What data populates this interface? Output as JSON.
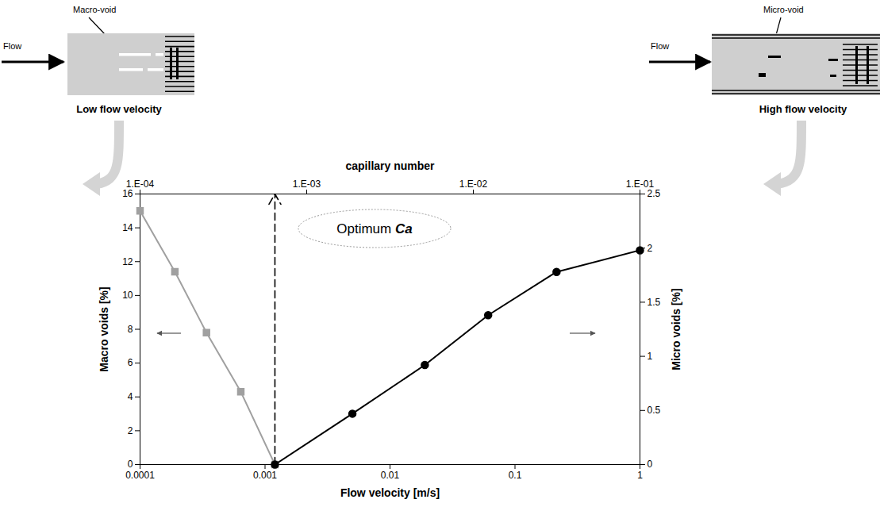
{
  "chart_data": {
    "type": "line",
    "log": "x",
    "grid": false,
    "x_label": "Flow velocity [m/s]",
    "xlim": [
      0.0001,
      1
    ],
    "xticks": [
      0.0001,
      0.001,
      0.01,
      0.1,
      1
    ],
    "x2_label": "capillary number",
    "x2lim": [
      0.0001,
      0.1
    ],
    "x2ticks": [
      {
        "value": 0.0001,
        "label": "1.E-04"
      },
      {
        "value": 0.001,
        "label": "1.E-03"
      },
      {
        "value": 0.01,
        "label": "1.E-02"
      },
      {
        "value": 0.1,
        "label": "1.E-01"
      }
    ],
    "ylim": [
      0,
      16
    ],
    "yticks": [
      0,
      2,
      4,
      6,
      8,
      10,
      12,
      14,
      16
    ],
    "y2lim": [
      0,
      2.5
    ],
    "y2ticks": [
      0,
      0.5,
      1,
      1.5,
      2,
      2.5
    ],
    "series": [
      {
        "name": "Macro voids [%]",
        "color": "#a0a0a0",
        "marker": "square",
        "x": [
          0.0001,
          0.00019,
          0.00034,
          0.00064,
          0.0012
        ],
        "values": [
          15,
          11.4,
          7.8,
          4.3,
          0
        ]
      },
      {
        "name": "Micro voids [%]",
        "color": "#000000",
        "marker": "circle",
        "axis": "y2",
        "x": [
          0.0012,
          0.005,
          0.019,
          0.061,
          0.215,
          1
        ],
        "values": [
          0,
          0.47,
          0.92,
          1.38,
          1.78,
          1.98
        ]
      }
    ],
    "annotations": [
      {
        "text": "Optimum Ca",
        "x": 0.0012
      }
    ],
    "schematics": [
      {
        "label": "Macro-void",
        "flow": "Flow",
        "caption": "Low flow velocity"
      },
      {
        "label": "Micro-void",
        "flow": "Flow",
        "caption": "High flow velocity"
      }
    ]
  }
}
